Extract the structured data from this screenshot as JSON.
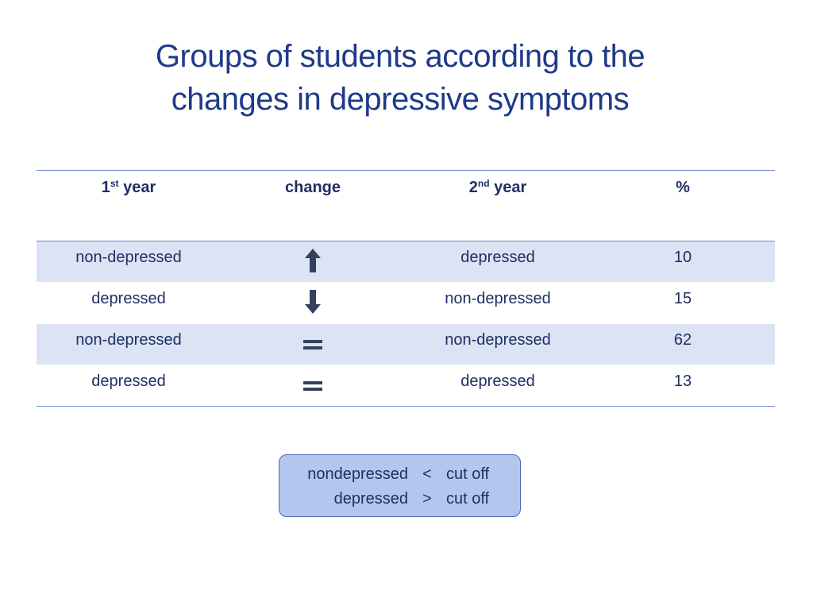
{
  "title": {
    "line1": "Groups of students according to the",
    "line2": "changes in depressive symptoms"
  },
  "table": {
    "headers": {
      "col1_num": "1",
      "col1_sup": "st",
      "col1_text": " year",
      "col2": "change",
      "col3_num": "2",
      "col3_sup": "nd",
      "col3_text": " year",
      "col4": "%"
    },
    "rows": [
      {
        "first_year": "non-depressed",
        "change": "up-arrow-icon",
        "second_year": "depressed",
        "percent": "10"
      },
      {
        "first_year": "depressed",
        "change": "down-arrow-icon",
        "second_year": "non-depressed",
        "percent": "15"
      },
      {
        "first_year": "non-depressed",
        "change": "equals-icon",
        "second_year": "non-depressed",
        "percent": "62"
      },
      {
        "first_year": "depressed",
        "change": "equals-icon",
        "second_year": "depressed",
        "percent": "13"
      }
    ],
    "shaded_color": "#dbe3f4",
    "rule_color": "#6f8fd6"
  },
  "legend": {
    "line1": {
      "label": "nondepressed",
      "op": "<",
      "value": "cut off"
    },
    "line2": {
      "label": "depressed",
      "op": ">",
      "value": "cut off"
    },
    "fill_color": "#b4c6ee",
    "border_color": "#4a67b5"
  }
}
